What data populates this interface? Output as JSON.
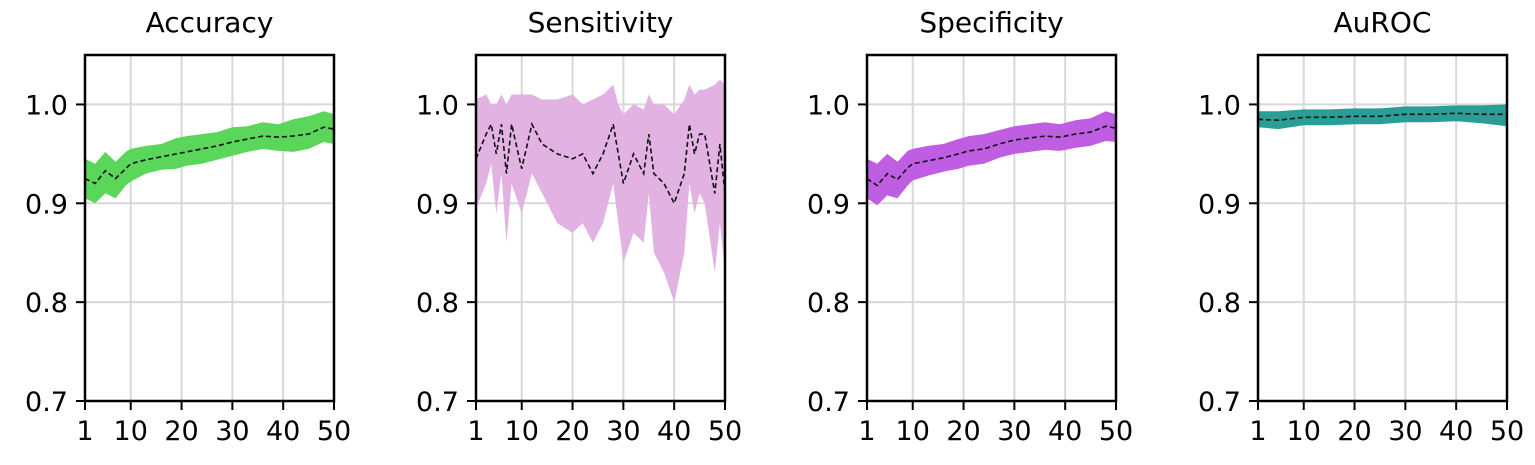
{
  "chart_data": [
    {
      "type": "area",
      "title": "Accuracy",
      "xlabel": "",
      "ylabel": "",
      "xlim": [
        1,
        50
      ],
      "ylim": [
        0.7,
        1.05
      ],
      "xticks": [
        "1",
        "10",
        "20",
        "30",
        "40",
        "50"
      ],
      "yticks": [
        "0.7",
        "0.8",
        "0.9",
        "1.0"
      ],
      "grid": true,
      "fill_color": "#5ad65a",
      "x": [
        1,
        3,
        5,
        7,
        9,
        10,
        13,
        16,
        19,
        21,
        24,
        27,
        30,
        33,
        36,
        39,
        42,
        45,
        48,
        50
      ],
      "mean": [
        0.925,
        0.92,
        0.933,
        0.925,
        0.935,
        0.94,
        0.944,
        0.947,
        0.95,
        0.952,
        0.955,
        0.958,
        0.962,
        0.965,
        0.968,
        0.967,
        0.968,
        0.97,
        0.977,
        0.975
      ],
      "upper": [
        0.945,
        0.94,
        0.952,
        0.942,
        0.952,
        0.955,
        0.958,
        0.96,
        0.966,
        0.968,
        0.97,
        0.972,
        0.977,
        0.978,
        0.982,
        0.98,
        0.985,
        0.988,
        0.993,
        0.99
      ],
      "lower": [
        0.905,
        0.9,
        0.91,
        0.905,
        0.918,
        0.922,
        0.93,
        0.934,
        0.935,
        0.938,
        0.94,
        0.944,
        0.948,
        0.952,
        0.955,
        0.953,
        0.952,
        0.955,
        0.962,
        0.96
      ]
    },
    {
      "type": "area",
      "title": "Sensitivity",
      "xlabel": "",
      "ylabel": "",
      "xlim": [
        1,
        50
      ],
      "ylim": [
        0.7,
        1.05
      ],
      "xticks": [
        "1",
        "10",
        "20",
        "30",
        "40",
        "50"
      ],
      "yticks": [
        "0.7",
        "0.8",
        "0.9",
        "1.0"
      ],
      "grid": true,
      "fill_color": "#e2b2e2",
      "x": [
        1,
        3,
        4,
        5,
        6,
        7,
        8,
        10,
        12,
        14,
        17,
        20,
        22,
        24,
        26,
        28,
        29,
        30,
        32,
        34,
        35,
        36,
        38,
        40,
        42,
        43,
        44,
        45,
        46,
        48,
        49,
        50
      ],
      "mean": [
        0.945,
        0.97,
        0.98,
        0.95,
        0.98,
        0.93,
        0.98,
        0.935,
        0.98,
        0.96,
        0.95,
        0.945,
        0.95,
        0.93,
        0.95,
        0.98,
        0.95,
        0.92,
        0.95,
        0.93,
        0.97,
        0.93,
        0.92,
        0.9,
        0.93,
        0.98,
        0.95,
        0.97,
        0.97,
        0.91,
        0.96,
        0.91
      ],
      "upper": [
        1.005,
        1.01,
        1.0,
        1.0,
        1.01,
        1.0,
        1.01,
        1.01,
        1.01,
        1.005,
        1.005,
        1.01,
        1.0,
        1.005,
        1.01,
        1.02,
        1.0,
        0.99,
        1.0,
        0.995,
        1.01,
        1.0,
        1.0,
        0.99,
        1.005,
        1.02,
        1.01,
        1.015,
        1.015,
        1.02,
        1.025,
        1.02
      ],
      "lower": [
        0.895,
        0.92,
        0.94,
        0.89,
        0.93,
        0.86,
        0.92,
        0.89,
        0.93,
        0.91,
        0.88,
        0.87,
        0.88,
        0.86,
        0.88,
        0.92,
        0.88,
        0.84,
        0.87,
        0.86,
        0.91,
        0.85,
        0.83,
        0.8,
        0.85,
        0.92,
        0.89,
        0.91,
        0.9,
        0.83,
        0.88,
        0.83
      ]
    },
    {
      "type": "area",
      "title": "Specificity",
      "xlabel": "",
      "ylabel": "",
      "xlim": [
        1,
        50
      ],
      "ylim": [
        0.7,
        1.05
      ],
      "xticks": [
        "1",
        "10",
        "20",
        "30",
        "40",
        "50"
      ],
      "yticks": [
        "0.7",
        "0.8",
        "0.9",
        "1.0"
      ],
      "grid": true,
      "fill_color": "#bf5ee3",
      "x": [
        1,
        3,
        5,
        7,
        9,
        10,
        13,
        16,
        19,
        21,
        24,
        27,
        30,
        33,
        36,
        39,
        42,
        45,
        48,
        50
      ],
      "mean": [
        0.925,
        0.918,
        0.93,
        0.924,
        0.936,
        0.94,
        0.943,
        0.946,
        0.95,
        0.953,
        0.955,
        0.96,
        0.964,
        0.966,
        0.968,
        0.967,
        0.97,
        0.972,
        0.978,
        0.976
      ],
      "upper": [
        0.945,
        0.94,
        0.95,
        0.942,
        0.953,
        0.955,
        0.958,
        0.96,
        0.965,
        0.968,
        0.97,
        0.974,
        0.978,
        0.98,
        0.982,
        0.98,
        0.984,
        0.986,
        0.993,
        0.99
      ],
      "lower": [
        0.905,
        0.898,
        0.908,
        0.905,
        0.918,
        0.923,
        0.928,
        0.932,
        0.935,
        0.938,
        0.94,
        0.946,
        0.95,
        0.952,
        0.954,
        0.953,
        0.956,
        0.958,
        0.963,
        0.962
      ]
    },
    {
      "type": "area",
      "title": "AuROC",
      "xlabel": "",
      "ylabel": "",
      "xlim": [
        1,
        50
      ],
      "ylim": [
        0.7,
        1.05
      ],
      "xticks": [
        "1",
        "10",
        "20",
        "30",
        "40",
        "50"
      ],
      "yticks": [
        "0.7",
        "0.8",
        "0.9",
        "1.0"
      ],
      "grid": true,
      "fill_color": "#2a9d96",
      "x": [
        1,
        5,
        10,
        15,
        20,
        25,
        30,
        35,
        40,
        45,
        50
      ],
      "mean": [
        0.985,
        0.984,
        0.987,
        0.987,
        0.988,
        0.988,
        0.99,
        0.99,
        0.991,
        0.99,
        0.99
      ],
      "upper": [
        0.993,
        0.993,
        0.995,
        0.995,
        0.996,
        0.996,
        0.998,
        0.998,
        0.999,
        0.999,
        1.0
      ],
      "lower": [
        0.977,
        0.975,
        0.979,
        0.979,
        0.98,
        0.98,
        0.982,
        0.982,
        0.983,
        0.981,
        0.978
      ]
    }
  ]
}
